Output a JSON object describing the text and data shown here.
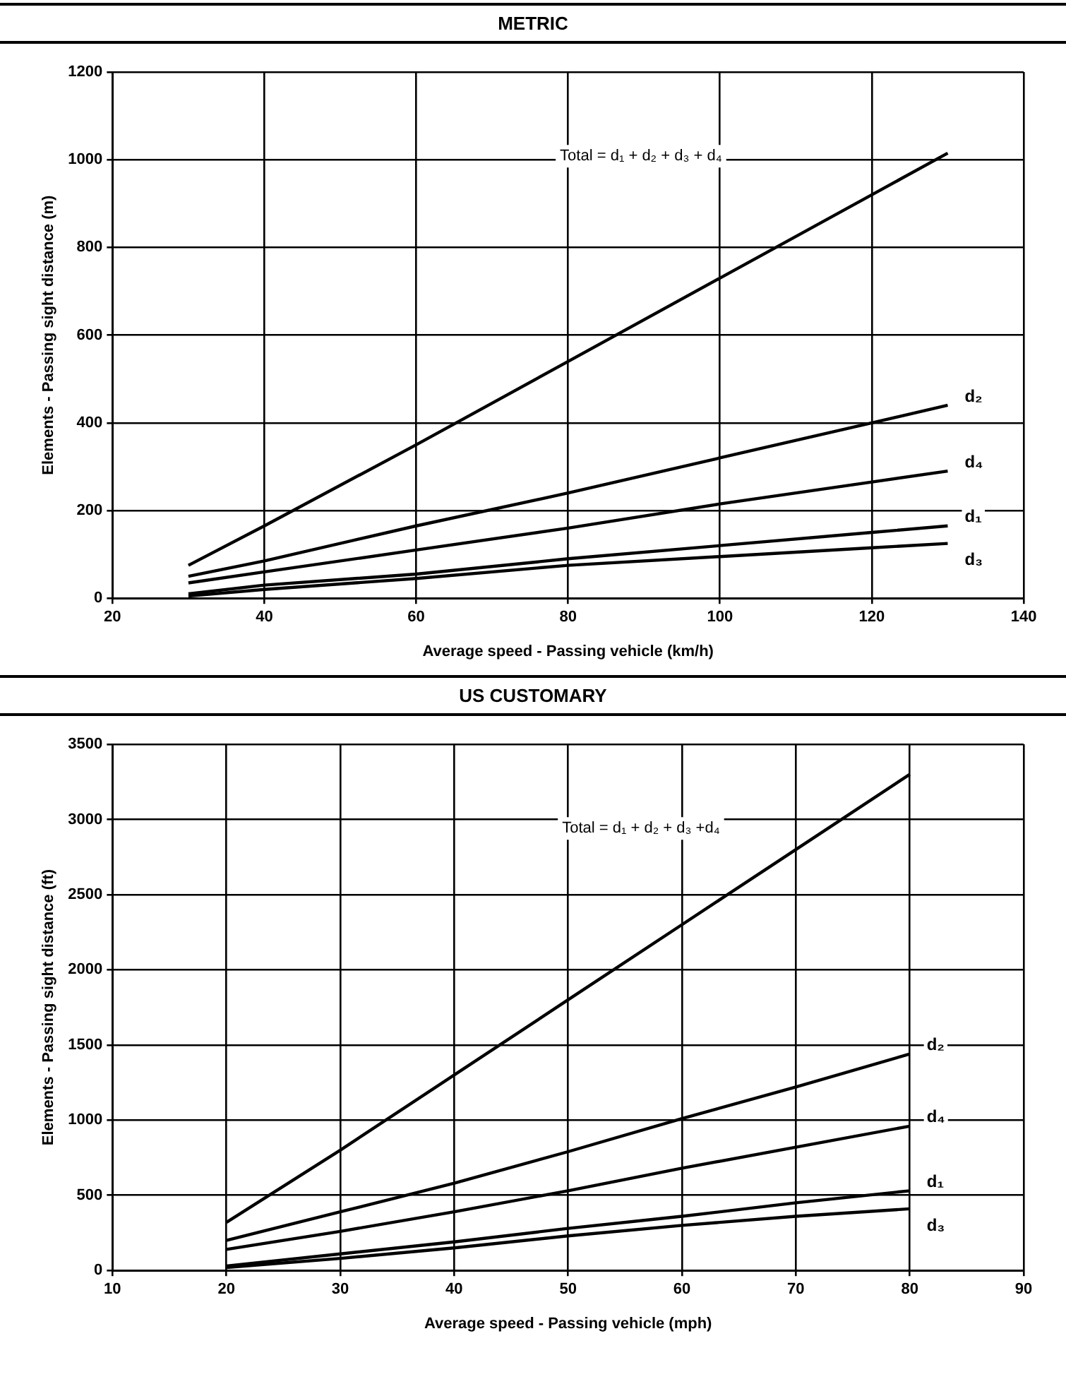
{
  "chart_data": [
    {
      "type": "line",
      "title": "METRIC",
      "xlabel": "Average speed - Passing vehicle (km/h)",
      "ylabel": "Elements - Passing sight distance (m)",
      "x": [
        30,
        40,
        60,
        80,
        100,
        120,
        130
      ],
      "series": [
        {
          "color": "#000000",
          "values": [
            75,
            165,
            350,
            540,
            730,
            920,
            1015
          ]
        },
        {
          "name": "d₂",
          "color": "#000000",
          "values": [
            50,
            85,
            165,
            240,
            320,
            400,
            440
          ]
        },
        {
          "name": "d₄",
          "color": "#000000",
          "values": [
            35,
            60,
            110,
            160,
            215,
            265,
            290
          ]
        },
        {
          "name": "d₁",
          "color": "#000000",
          "values": [
            10,
            30,
            55,
            90,
            120,
            150,
            165
          ]
        },
        {
          "name": "d₃",
          "color": "#000000",
          "values": [
            5,
            20,
            45,
            75,
            95,
            115,
            125
          ]
        }
      ],
      "annotations": [
        "Total = d₁ + d₂ + d₃ + d₄"
      ],
      "xlim": [
        20,
        140
      ],
      "xticks": [
        20,
        40,
        60,
        80,
        100,
        120,
        140
      ],
      "ylim": [
        0,
        1200
      ],
      "yticks": [
        0,
        200,
        400,
        600,
        800,
        1000,
        1200
      ],
      "grid": true,
      "legend": false,
      "marker": "none",
      "line_style": "solid"
    },
    {
      "type": "line",
      "title": "US CUSTOMARY",
      "xlabel": "Average speed - Passing vehicle (mph)",
      "ylabel": "Elements - Passing sight distance (ft)",
      "x": [
        20,
        30,
        40,
        50,
        60,
        70,
        80
      ],
      "series": [
        {
          "color": "#000000",
          "values": [
            320,
            800,
            1300,
            1800,
            2300,
            2800,
            3300
          ]
        },
        {
          "name": "d₂",
          "color": "#000000",
          "values": [
            200,
            390,
            580,
            790,
            1010,
            1220,
            1440
          ]
        },
        {
          "name": "d₄",
          "color": "#000000",
          "values": [
            140,
            260,
            390,
            530,
            680,
            820,
            960
          ]
        },
        {
          "name": "d₁",
          "color": "#000000",
          "values": [
            30,
            110,
            190,
            280,
            360,
            450,
            530
          ]
        },
        {
          "name": "d₃",
          "color": "#000000",
          "values": [
            20,
            80,
            150,
            230,
            300,
            360,
            410
          ]
        }
      ],
      "annotations": [
        "Total = d₁ + d₂ + d₃ +d₄"
      ],
      "xlim": [
        10,
        90
      ],
      "xticks": [
        10,
        20,
        30,
        40,
        50,
        60,
        70,
        80,
        90
      ],
      "ylim": [
        0,
        3500
      ],
      "yticks": [
        0,
        500,
        1000,
        1500,
        2000,
        2500,
        3000,
        3500
      ],
      "grid": true,
      "legend": false,
      "marker": "none",
      "line_style": "solid"
    }
  ]
}
